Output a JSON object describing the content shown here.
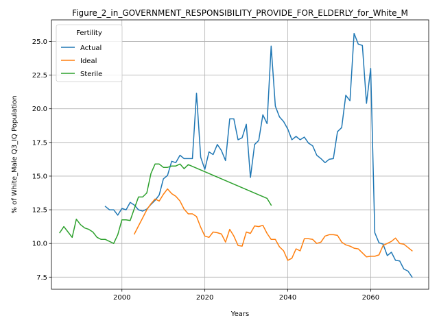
{
  "chart_data": {
    "type": "line",
    "title": "Figure_2_in_GOVERNMENT_RESPONSIBILITY_PROVIDE_FOR_ELDERLY_for_White_M",
    "xlabel": "Years",
    "ylabel": "% of White_Male Q3_IQ Population",
    "xlim": [
      1983,
      2074
    ],
    "ylim": [
      6.6,
      26.6
    ],
    "xticks": [
      2000,
      2020,
      2040,
      2060
    ],
    "yticks": [
      7.5,
      10.0,
      12.5,
      15.0,
      17.5,
      20.0,
      22.5,
      25.0
    ],
    "xtick_labels": [
      "2000",
      "2020",
      "2040",
      "2060"
    ],
    "ytick_labels": [
      "7.5",
      "10.0",
      "12.5",
      "15.0",
      "17.5",
      "20.0",
      "22.5",
      "25.0"
    ],
    "grid": true,
    "legend": {
      "title": "Fertility",
      "position": "top-left"
    },
    "series": [
      {
        "name": "Actual",
        "color": "#1f77b4",
        "x": [
          1996,
          1997,
          1998,
          1999,
          2000,
          2001,
          2002,
          2003,
          2004,
          2005,
          2006,
          2007,
          2008,
          2009,
          2010,
          2011,
          2012,
          2013,
          2014,
          2015,
          2016,
          2017,
          2018,
          2019,
          2020,
          2021,
          2022,
          2023,
          2024,
          2025,
          2026,
          2027,
          2028,
          2029,
          2030,
          2031,
          2032,
          2033,
          2034,
          2035,
          2036,
          2037,
          2038,
          2039,
          2040,
          2041,
          2042,
          2043,
          2044,
          2045,
          2046,
          2047,
          2048,
          2049,
          2050,
          2051,
          2052,
          2053,
          2054,
          2055,
          2056,
          2057,
          2058,
          2059,
          2060,
          2061,
          2062,
          2063,
          2064,
          2065,
          2066,
          2067,
          2068,
          2069,
          2070
        ],
        "y": [
          12.75,
          12.5,
          12.5,
          12.1,
          12.6,
          12.5,
          13.05,
          12.85,
          12.5,
          12.4,
          12.55,
          12.9,
          13.2,
          13.6,
          14.8,
          15.05,
          16.1,
          16.0,
          16.55,
          16.3,
          16.3,
          16.3,
          21.15,
          16.4,
          15.5,
          16.8,
          16.6,
          17.35,
          16.9,
          16.15,
          19.25,
          19.25,
          17.7,
          17.85,
          18.85,
          14.9,
          17.35,
          17.65,
          19.55,
          18.9,
          24.65,
          20.2,
          19.4,
          19.05,
          18.5,
          17.7,
          17.95,
          17.7,
          17.9,
          17.45,
          17.25,
          16.55,
          16.3,
          16.0,
          16.25,
          16.3,
          18.3,
          18.6,
          21.0,
          20.6,
          25.6,
          24.8,
          24.7,
          20.4,
          23.0,
          10.8,
          10.05,
          9.95,
          9.1,
          9.35,
          8.75,
          8.7,
          8.1,
          7.95,
          7.5
        ]
      },
      {
        "name": "Ideal",
        "color": "#ff7f0e",
        "x": [
          2003,
          2004,
          2005,
          2006,
          2007,
          2008,
          2009,
          2010,
          2011,
          2012,
          2013,
          2014,
          2015,
          2016,
          2017,
          2018,
          2019,
          2020,
          2021,
          2022,
          2023,
          2024,
          2025,
          2026,
          2027,
          2028,
          2029,
          2030,
          2031,
          2032,
          2033,
          2034,
          2035,
          2036,
          2037,
          2038,
          2039,
          2040,
          2041,
          2042,
          2043,
          2044,
          2045,
          2046,
          2047,
          2048,
          2049,
          2050,
          2051,
          2052,
          2053,
          2054,
          2055,
          2056,
          2057,
          2058,
          2059,
          2060,
          2061,
          2062,
          2063,
          2064,
          2065,
          2066,
          2067,
          2068,
          2069,
          2070
        ],
        "y": [
          10.7,
          11.3,
          11.9,
          12.5,
          12.95,
          13.3,
          13.15,
          13.65,
          14.05,
          13.7,
          13.5,
          13.15,
          12.55,
          12.2,
          12.2,
          12.0,
          11.2,
          10.55,
          10.45,
          10.85,
          10.8,
          10.7,
          10.1,
          11.05,
          10.55,
          9.85,
          9.8,
          10.85,
          10.75,
          11.3,
          11.25,
          11.35,
          10.75,
          10.3,
          10.3,
          9.75,
          9.45,
          8.75,
          8.9,
          9.6,
          9.45,
          10.35,
          10.35,
          10.3,
          10.0,
          10.1,
          10.55,
          10.65,
          10.65,
          10.6,
          10.1,
          9.9,
          9.8,
          9.65,
          9.6,
          9.3,
          9.0,
          9.05,
          9.05,
          9.15,
          9.85,
          10.0,
          10.15,
          10.4,
          10.0,
          9.95,
          9.7,
          9.45
        ]
      },
      {
        "name": "Sterile",
        "color": "#2ca02c",
        "x": [
          1985,
          1986,
          1987,
          1988,
          1989,
          1990,
          1991,
          1992,
          1993,
          1994,
          1995,
          1996,
          1997,
          1998,
          1999,
          2000,
          2001,
          2002,
          2003,
          2004,
          2005,
          2006,
          2007,
          2008,
          2009,
          2010,
          2011,
          2012,
          2013,
          2014,
          2015,
          2016,
          2035,
          2036
        ],
        "y": [
          10.8,
          11.25,
          10.85,
          10.45,
          11.8,
          11.4,
          11.15,
          11.05,
          10.85,
          10.45,
          10.3,
          10.3,
          10.15,
          10.0,
          10.65,
          11.75,
          11.75,
          11.7,
          12.6,
          13.45,
          13.45,
          13.75,
          15.2,
          15.9,
          15.9,
          15.65,
          15.65,
          15.75,
          15.75,
          15.9,
          15.55,
          15.85,
          13.35,
          12.85
        ]
      }
    ]
  }
}
